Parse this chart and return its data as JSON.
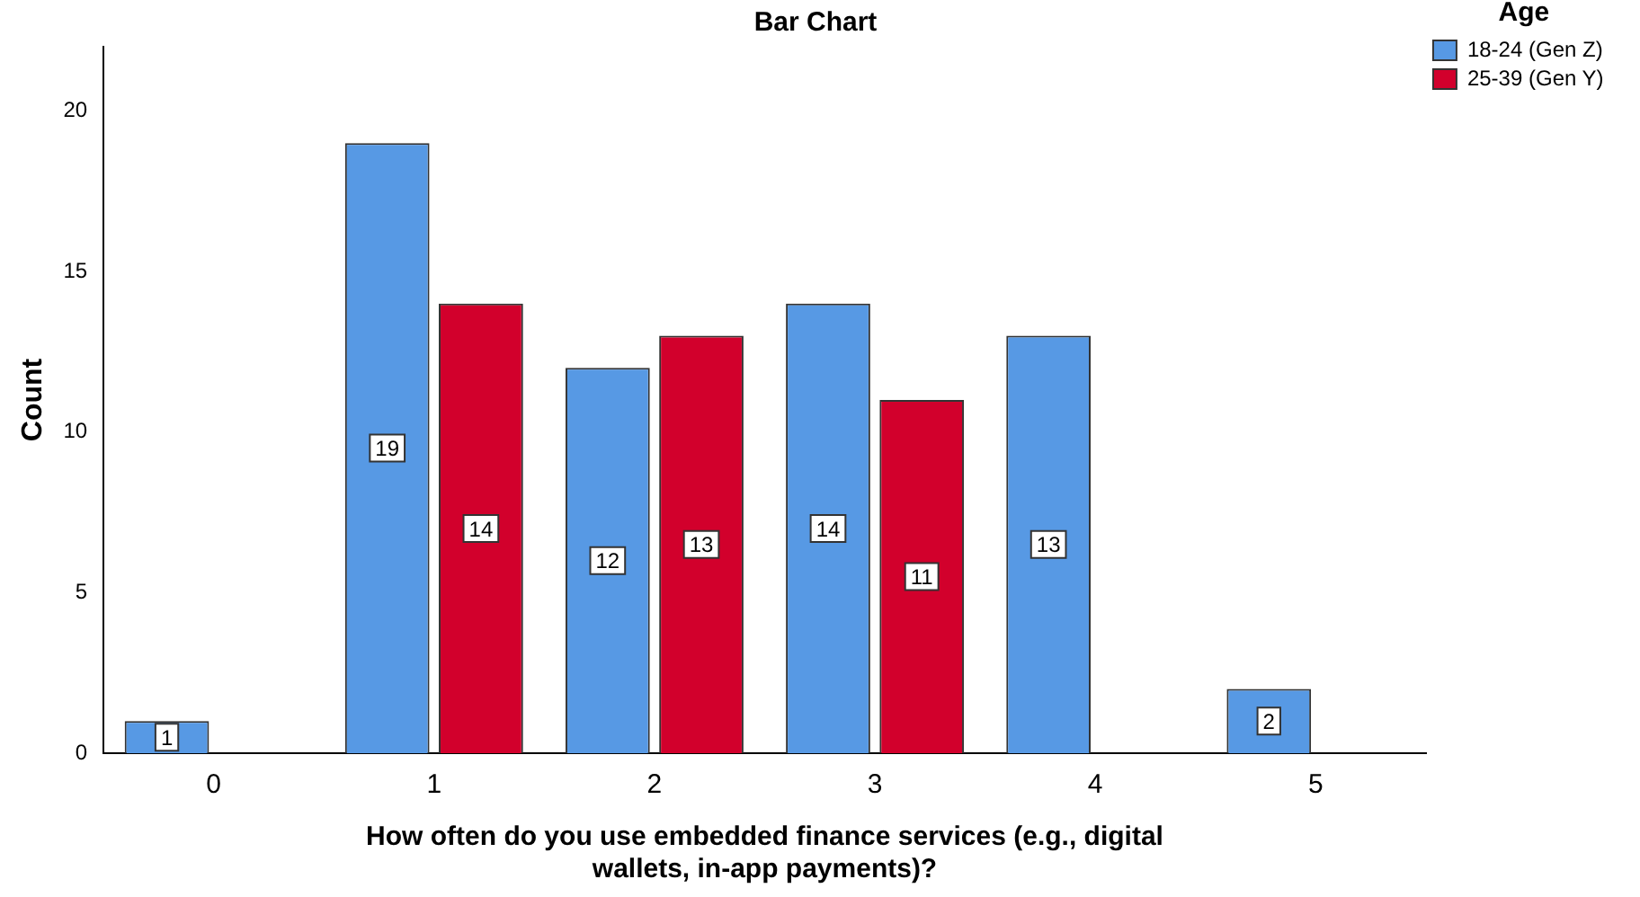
{
  "chart_data": {
    "type": "bar",
    "title": "Bar Chart",
    "xlabel": "How often do you use embedded finance services (e.g., digital\nwallets, in-app payments)?",
    "ylabel": "Count",
    "legend_title": "Age",
    "categories": [
      "0",
      "1",
      "2",
      "3",
      "4",
      "5"
    ],
    "series": [
      {
        "name": "18-24 (Gen Z)",
        "color": "#5799e4",
        "values": [
          1,
          19,
          12,
          14,
          13,
          2
        ]
      },
      {
        "name": "25-39 (Gen Y)",
        "color": "#d2002c",
        "values": [
          null,
          14,
          13,
          11,
          null,
          null
        ]
      }
    ],
    "ylim": [
      0,
      22
    ],
    "yticks": [
      0,
      5,
      10,
      15,
      20
    ],
    "grid": false,
    "legend": "top right",
    "data_labels": true
  }
}
